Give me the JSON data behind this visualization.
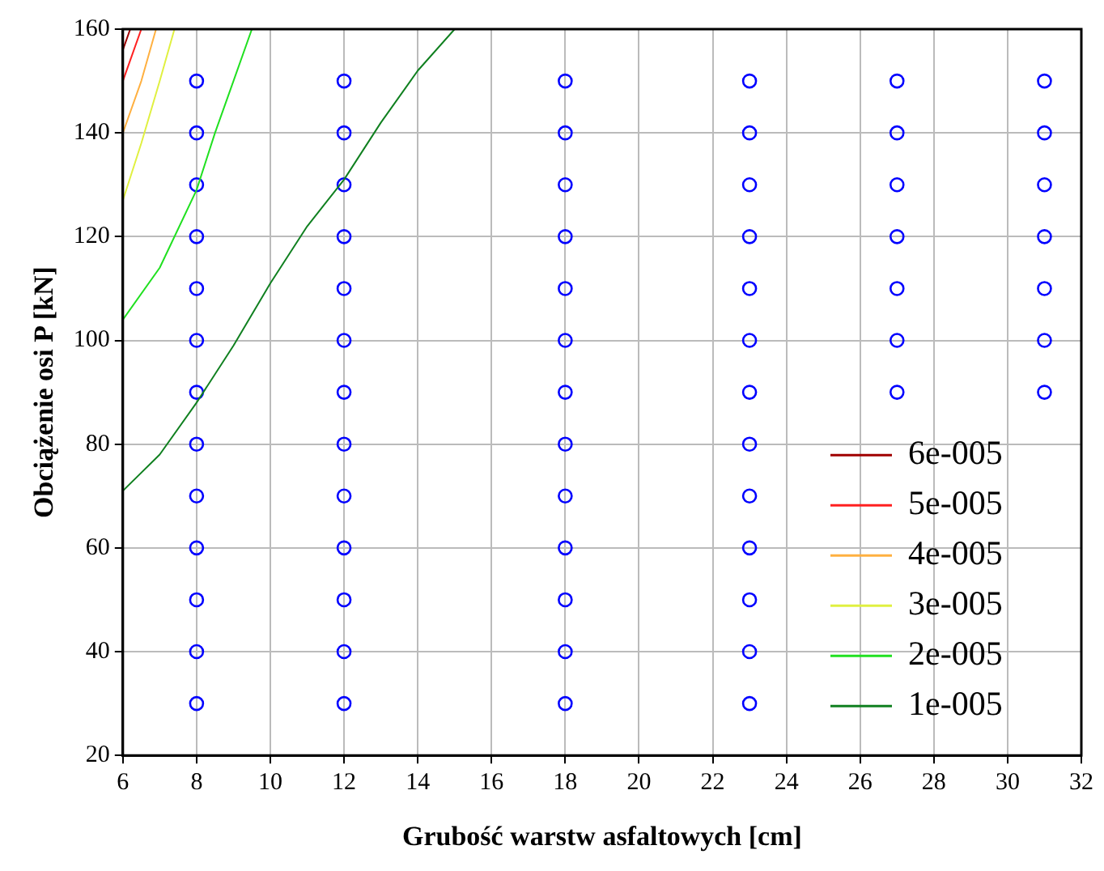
{
  "chart_data": {
    "type": "line",
    "xlabel": "Grubość warstw asfaltowych [cm]",
    "ylabel": "Obciążenie osi P [kN]",
    "xlim": [
      6,
      32
    ],
    "xticks": [
      6,
      8,
      10,
      12,
      14,
      16,
      18,
      20,
      22,
      24,
      26,
      28,
      30,
      32
    ],
    "ylim": [
      20,
      160
    ],
    "yticks": [
      20,
      40,
      60,
      80,
      100,
      120,
      140,
      160
    ],
    "grid": true,
    "legend": "bottom right",
    "marker": "none",
    "line_style": "solid",
    "series": [
      {
        "name": "6e-005",
        "color": "#a00000",
        "x": [
          6,
          6.2
        ],
        "values": [
          156,
          160
        ]
      },
      {
        "name": "5e-005",
        "color": "#ff2020",
        "x": [
          6,
          6.5
        ],
        "values": [
          150,
          160
        ]
      },
      {
        "name": "4e-005",
        "color": "#ffb040",
        "x": [
          6,
          6.5,
          6.9
        ],
        "values": [
          140,
          150,
          160
        ]
      },
      {
        "name": "3e-005",
        "color": "#e0f040",
        "x": [
          6,
          6.5,
          7,
          7.4
        ],
        "values": [
          127,
          138,
          150,
          160
        ]
      },
      {
        "name": "2e-005",
        "color": "#20e020",
        "x": [
          6,
          7,
          8,
          8.5,
          9,
          9.5
        ],
        "values": [
          104,
          114,
          129,
          140,
          150,
          160
        ]
      },
      {
        "name": "1e-005",
        "color": "#108020",
        "x": [
          6,
          7,
          8,
          9,
          10,
          11,
          12,
          13,
          14,
          15
        ],
        "values": [
          71,
          78,
          88,
          99,
          111,
          122,
          131,
          142,
          152,
          160
        ]
      },
      {
        "type": "scatter",
        "color": "#0000ff",
        "marker": "circle",
        "x": [
          8,
          8,
          8,
          8,
          8,
          8,
          8,
          8,
          8,
          8,
          8,
          8,
          8,
          12,
          12,
          12,
          12,
          12,
          12,
          12,
          12,
          12,
          12,
          12,
          12,
          12,
          18,
          18,
          18,
          18,
          18,
          18,
          18,
          18,
          18,
          18,
          18,
          18,
          18,
          23,
          23,
          23,
          23,
          23,
          23,
          23,
          23,
          23,
          23,
          23,
          23,
          23,
          27,
          27,
          27,
          27,
          27,
          27,
          27,
          31,
          31,
          31,
          31,
          31,
          31,
          31
        ],
        "values": [
          30,
          40,
          50,
          60,
          70,
          80,
          90,
          100,
          110,
          120,
          130,
          140,
          150,
          30,
          40,
          50,
          60,
          70,
          80,
          90,
          100,
          110,
          120,
          130,
          140,
          150,
          30,
          40,
          50,
          60,
          70,
          80,
          90,
          100,
          110,
          120,
          130,
          140,
          150,
          30,
          40,
          50,
          60,
          70,
          80,
          90,
          100,
          110,
          120,
          130,
          140,
          150,
          90,
          100,
          110,
          120,
          130,
          140,
          150,
          90,
          100,
          110,
          120,
          130,
          140,
          150
        ]
      }
    ]
  }
}
